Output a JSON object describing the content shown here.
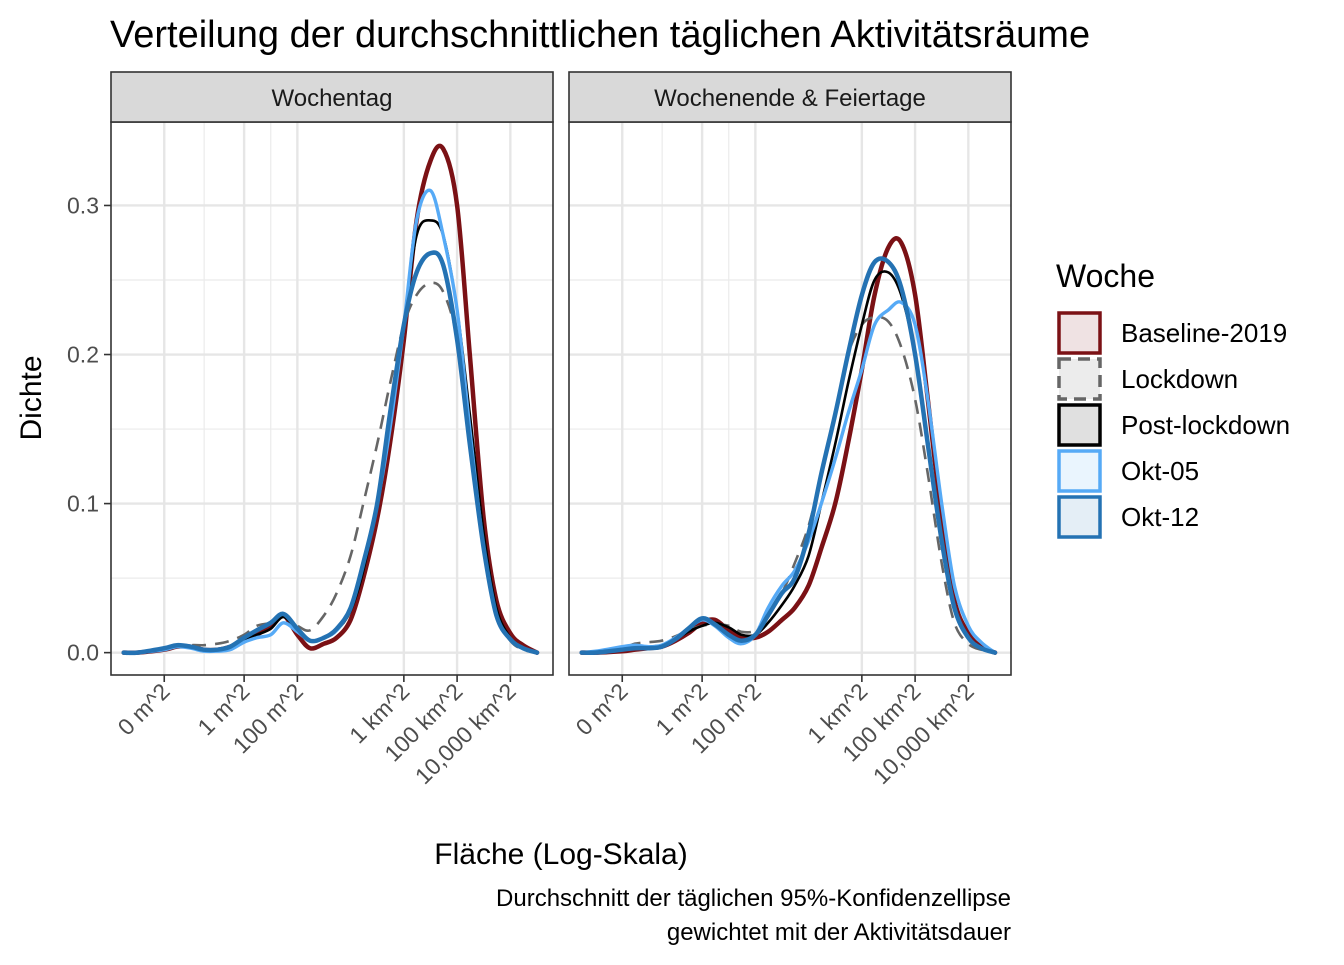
{
  "title": "Verteilung der durchschnittlichen täglichen Aktivitätsräume",
  "caption_lines": [
    "Durchschnitt der täglichen 95%-Konfidenzellipse",
    "gewichtet mit der Aktivitätsdauer"
  ],
  "chart_data": {
    "type": "line",
    "subtype": "density",
    "title": "Verteilung der durchschnittlichen täglichen Aktivitätsräume",
    "xlabel": "Fläche (Log-Skala)",
    "ylabel": "Dichte",
    "x_scale": "log10",
    "x_unit": "m^2",
    "xlim": [
      1e-05,
      400000000000
    ],
    "ylim": [
      -0.015,
      0.356
    ],
    "x_ticks": [
      {
        "value": 0.001,
        "label": "0 m^2"
      },
      {
        "value": 1,
        "label": "1 m^2"
      },
      {
        "value": 100,
        "label": "100 m^2"
      },
      {
        "value": 1000000,
        "label": "1 km^2"
      },
      {
        "value": 100000000,
        "label": "100 km^2"
      },
      {
        "value": 10000000000,
        "label": "10,000 km^2"
      }
    ],
    "x_minor_gridlines": [
      0.0316,
      10
    ],
    "y_ticks": [
      {
        "value": 0.0,
        "label": "0.0"
      },
      {
        "value": 0.1,
        "label": "0.1"
      },
      {
        "value": 0.2,
        "label": "0.2"
      },
      {
        "value": 0.3,
        "label": "0.3"
      }
    ],
    "grid": true,
    "legend": {
      "title": "Woche",
      "position": "right"
    },
    "series_styles": [
      {
        "name": "Baseline-2019",
        "color": "#7b1115",
        "dash": "solid",
        "width": 4.5
      },
      {
        "name": "Lockdown",
        "color": "#666666",
        "dash": "dashed",
        "width": 2.6
      },
      {
        "name": "Post-lockdown",
        "color": "#000000",
        "dash": "solid",
        "width": 2.6
      },
      {
        "name": "Okt-05",
        "color": "#56aaf6",
        "dash": "solid",
        "width": 3.4
      },
      {
        "name": "Okt-12",
        "color": "#2472b3",
        "dash": "solid",
        "width": 4.5
      }
    ],
    "panels": [
      {
        "label": "Wochentag",
        "series": [
          {
            "name": "Baseline-2019",
            "x": [
              3e-05,
              0.0001,
              0.001,
              0.003,
              0.01,
              0.03,
              0.1,
              0.3,
              1,
              3,
              10,
              30,
              100,
              300,
              1000,
              3000,
              10000,
              30000,
              100000,
              300000,
              1000000,
              3000000,
              10000000,
              30000000,
              100000000,
              300000000,
              1000000000,
              3000000000,
              10000000000,
              30000000000,
              100000000000
            ],
            "y": [
              0,
              0,
              0.002,
              0.004,
              0.004,
              0.002,
              0.002,
              0.004,
              0.008,
              0.012,
              0.018,
              0.025,
              0.012,
              0.003,
              0.006,
              0.01,
              0.022,
              0.05,
              0.09,
              0.14,
              0.21,
              0.29,
              0.33,
              0.338,
              0.3,
              0.2,
              0.09,
              0.035,
              0.013,
              0.005,
              0.0
            ]
          },
          {
            "name": "Lockdown",
            "x": [
              3e-05,
              0.0001,
              0.001,
              0.003,
              0.01,
              0.03,
              0.1,
              0.3,
              1,
              3,
              10,
              30,
              100,
              300,
              1000,
              3000,
              10000,
              30000,
              100000,
              300000,
              1000000,
              3000000,
              10000000,
              30000000,
              100000000,
              300000000,
              1000000000,
              3000000000,
              10000000000,
              30000000000,
              100000000000
            ],
            "y": [
              0,
              0,
              0.002,
              0.004,
              0.005,
              0.005,
              0.006,
              0.008,
              0.012,
              0.018,
              0.02,
              0.024,
              0.018,
              0.015,
              0.025,
              0.04,
              0.065,
              0.1,
              0.14,
              0.18,
              0.22,
              0.24,
              0.248,
              0.242,
              0.21,
              0.14,
              0.07,
              0.025,
              0.008,
              0.002,
              0.0
            ]
          },
          {
            "name": "Post-lockdown",
            "x": [
              3e-05,
              0.0001,
              0.001,
              0.003,
              0.01,
              0.03,
              0.1,
              0.3,
              1,
              3,
              10,
              30,
              100,
              300,
              1000,
              3000,
              10000,
              30000,
              100000,
              300000,
              1000000,
              3000000,
              10000000,
              30000000,
              100000000,
              300000000,
              1000000000,
              3000000000,
              10000000000,
              30000000000,
              100000000000
            ],
            "y": [
              0,
              0,
              0.002,
              0.004,
              0.004,
              0.002,
              0.002,
              0.004,
              0.009,
              0.012,
              0.016,
              0.024,
              0.015,
              0.008,
              0.01,
              0.015,
              0.028,
              0.055,
              0.1,
              0.15,
              0.22,
              0.28,
              0.29,
              0.28,
              0.23,
              0.16,
              0.08,
              0.03,
              0.01,
              0.003,
              0.0
            ]
          },
          {
            "name": "Okt-05",
            "x": [
              3e-05,
              0.0001,
              0.001,
              0.003,
              0.01,
              0.03,
              0.1,
              0.3,
              1,
              3,
              10,
              30,
              100,
              300,
              1000,
              3000,
              10000,
              30000,
              100000,
              300000,
              1000000,
              3000000,
              10000000,
              30000000,
              100000000,
              300000000,
              1000000000,
              3000000000,
              10000000000,
              30000000000,
              100000000000
            ],
            "y": [
              0,
              0,
              0.002,
              0.004,
              0.003,
              0.001,
              0.001,
              0.002,
              0.007,
              0.01,
              0.012,
              0.02,
              0.014,
              0.008,
              0.01,
              0.015,
              0.03,
              0.06,
              0.1,
              0.15,
              0.22,
              0.29,
              0.31,
              0.28,
              0.23,
              0.15,
              0.07,
              0.025,
              0.009,
              0.003,
              0.0
            ]
          },
          {
            "name": "Okt-12",
            "x": [
              3e-05,
              0.0001,
              0.001,
              0.003,
              0.01,
              0.03,
              0.1,
              0.3,
              1,
              3,
              10,
              30,
              100,
              300,
              1000,
              3000,
              10000,
              30000,
              100000,
              300000,
              1000000,
              3000000,
              10000000,
              30000000,
              100000000,
              300000000,
              1000000000,
              3000000000,
              10000000000,
              30000000000,
              100000000000
            ],
            "y": [
              0,
              0,
              0.003,
              0.005,
              0.004,
              0.002,
              0.002,
              0.004,
              0.01,
              0.015,
              0.02,
              0.026,
              0.016,
              0.008,
              0.01,
              0.016,
              0.03,
              0.06,
              0.1,
              0.16,
              0.22,
              0.255,
              0.268,
              0.26,
              0.21,
              0.14,
              0.07,
              0.025,
              0.009,
              0.003,
              0.0
            ]
          }
        ]
      },
      {
        "label": "Wochenende & Feiertage",
        "series": [
          {
            "name": "Baseline-2019",
            "x": [
              3e-05,
              0.0001,
              0.001,
              0.003,
              0.01,
              0.03,
              0.1,
              0.3,
              1,
              3,
              10,
              30,
              100,
              300,
              1000,
              3000,
              10000,
              30000,
              100000,
              300000,
              1000000,
              3000000,
              10000000,
              30000000,
              100000000,
              300000000,
              1000000000,
              3000000000,
              10000000000,
              30000000000,
              100000000000
            ],
            "y": [
              0,
              0,
              0.001,
              0.002,
              0.003,
              0.004,
              0.008,
              0.013,
              0.02,
              0.022,
              0.015,
              0.01,
              0.01,
              0.014,
              0.022,
              0.03,
              0.045,
              0.07,
              0.1,
              0.14,
              0.19,
              0.24,
              0.272,
              0.275,
              0.24,
              0.17,
              0.09,
              0.035,
              0.013,
              0.004,
              0.0
            ]
          },
          {
            "name": "Lockdown",
            "x": [
              3e-05,
              0.0001,
              0.001,
              0.003,
              0.01,
              0.03,
              0.1,
              0.3,
              1,
              3,
              10,
              30,
              100,
              300,
              1000,
              3000,
              10000,
              30000,
              100000,
              300000,
              1000000,
              3000000,
              10000000,
              30000000,
              100000000,
              300000000,
              1000000000,
              3000000000,
              10000000000,
              30000000000,
              100000000000
            ],
            "y": [
              0,
              0,
              0.003,
              0.006,
              0.007,
              0.008,
              0.011,
              0.015,
              0.018,
              0.019,
              0.018,
              0.014,
              0.015,
              0.025,
              0.04,
              0.06,
              0.085,
              0.12,
              0.16,
              0.2,
              0.22,
              0.225,
              0.222,
              0.205,
              0.17,
              0.12,
              0.06,
              0.02,
              0.006,
              0.002,
              0.0
            ]
          },
          {
            "name": "Post-lockdown",
            "x": [
              3e-05,
              0.0001,
              0.001,
              0.003,
              0.01,
              0.03,
              0.1,
              0.3,
              1,
              3,
              10,
              30,
              100,
              300,
              1000,
              3000,
              10000,
              30000,
              100000,
              300000,
              1000000,
              3000000,
              10000000,
              30000000,
              100000000,
              300000000,
              1000000000,
              3000000000,
              10000000000,
              30000000000,
              100000000000
            ],
            "y": [
              0,
              0,
              0.002,
              0.003,
              0.004,
              0.005,
              0.009,
              0.014,
              0.018,
              0.02,
              0.017,
              0.012,
              0.012,
              0.02,
              0.032,
              0.045,
              0.065,
              0.1,
              0.14,
              0.18,
              0.22,
              0.25,
              0.255,
              0.24,
              0.2,
              0.14,
              0.075,
              0.03,
              0.01,
              0.003,
              0.0
            ]
          },
          {
            "name": "Okt-05",
            "x": [
              3e-05,
              0.0001,
              0.001,
              0.003,
              0.01,
              0.03,
              0.1,
              0.3,
              1,
              3,
              10,
              30,
              100,
              300,
              1000,
              3000,
              10000,
              30000,
              100000,
              300000,
              1000000,
              3000000,
              10000000,
              30000000,
              100000000,
              300000000,
              1000000000,
              3000000000,
              10000000000,
              30000000000,
              100000000000
            ],
            "y": [
              0,
              0.001,
              0.004,
              0.005,
              0.004,
              0.005,
              0.01,
              0.016,
              0.022,
              0.018,
              0.01,
              0.006,
              0.012,
              0.03,
              0.045,
              0.055,
              0.075,
              0.1,
              0.13,
              0.16,
              0.19,
              0.22,
              0.23,
              0.235,
              0.22,
              0.17,
              0.1,
              0.045,
              0.018,
              0.007,
              0.0
            ]
          },
          {
            "name": "Okt-12",
            "x": [
              3e-05,
              0.0001,
              0.001,
              0.003,
              0.01,
              0.03,
              0.1,
              0.3,
              1,
              3,
              10,
              30,
              100,
              300,
              1000,
              3000,
              10000,
              30000,
              100000,
              300000,
              1000000,
              3000000,
              10000000,
              30000000,
              100000000,
              300000000,
              1000000000,
              3000000000,
              10000000000,
              30000000000,
              100000000000
            ],
            "y": [
              0,
              0,
              0.002,
              0.003,
              0.003,
              0.004,
              0.009,
              0.016,
              0.023,
              0.019,
              0.012,
              0.008,
              0.012,
              0.025,
              0.04,
              0.05,
              0.08,
              0.12,
              0.16,
              0.2,
              0.24,
              0.262,
              0.262,
              0.245,
              0.2,
              0.14,
              0.075,
              0.03,
              0.01,
              0.003,
              0.0
            ]
          }
        ]
      }
    ]
  }
}
